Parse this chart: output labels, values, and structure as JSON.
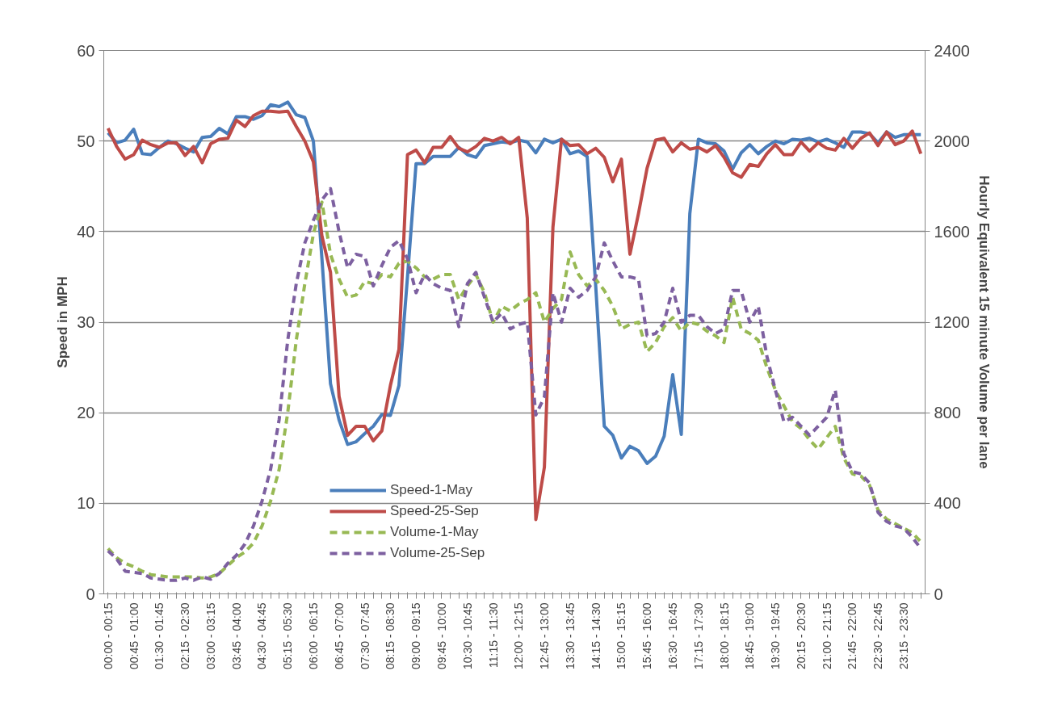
{
  "chart_data": {
    "type": "line",
    "categories": [
      "00:00 - 00:15",
      null,
      null,
      "00:45 - 01:00",
      null,
      null,
      "01:30 - 01:45",
      null,
      null,
      "02:15 - 02:30",
      null,
      null,
      "03:00 - 03:15",
      null,
      null,
      "03:45 - 04:00",
      null,
      null,
      "04:30 - 04:45",
      null,
      null,
      "05:15 - 05:30",
      null,
      null,
      "06:00 - 06:15",
      null,
      null,
      "06:45 - 07:00",
      null,
      null,
      "07:30 - 07:45",
      null,
      null,
      "08:15 - 08:30",
      null,
      null,
      "09:00 - 09:15",
      null,
      null,
      "09:45 - 10:00",
      null,
      null,
      "10:30 - 10:45",
      null,
      null,
      "11:15 - 11:30",
      null,
      null,
      "12:00 - 12:15",
      null,
      null,
      "12:45 - 13:00",
      null,
      null,
      "13:30 - 13:45",
      null,
      null,
      "14:15 - 14:30",
      null,
      null,
      "15:00 - 15:15",
      null,
      null,
      "15:45 - 16:00",
      null,
      null,
      "16:30 - 16:45",
      null,
      null,
      "17:15 - 17:30",
      null,
      null,
      "18:00 - 18:15",
      null,
      null,
      "18:45 - 19:00",
      null,
      null,
      "19:30 - 19:45",
      null,
      null,
      "20:15 - 20:30",
      null,
      null,
      "21:00 - 21:15",
      null,
      null,
      "21:45 - 22:00",
      null,
      null,
      "22:30 - 22:45",
      null,
      null,
      "23:15 - 23:30",
      null,
      null
    ],
    "ylabel": "Speed in MPH",
    "y2label": "Hourly Equivalent 15 minute Volume per lane",
    "ylim": [
      0,
      60
    ],
    "yticks": [
      0,
      10,
      20,
      30,
      40,
      50,
      60
    ],
    "y2lim": [
      0,
      2400
    ],
    "y2ticks": [
      0,
      400,
      800,
      1200,
      1600,
      2000,
      2400
    ],
    "grid": "y",
    "legend": "bottom",
    "series": [
      {
        "name": "Speed-1-May",
        "color": "#4a7ebb",
        "line_style": "solid",
        "values": [
          50.9,
          49.8,
          50.1,
          51.3,
          48.6,
          48.5,
          49.3,
          50.0,
          49.7,
          49.2,
          48.8,
          50.4,
          50.5,
          51.4,
          50.8,
          52.7,
          52.7,
          52.4,
          52.8,
          54.0,
          53.8,
          54.3,
          52.9,
          52.6,
          50.0,
          37,
          23.2,
          19.2,
          16.5,
          16.8,
          17.7,
          18.5,
          19.8,
          19.7,
          23,
          35,
          47.5,
          47.5,
          48.3,
          48.3,
          48.3,
          49.3,
          48.5,
          48.2,
          49.5,
          49.7,
          49.9,
          49.8,
          50.1,
          49.9,
          48.7,
          50.2,
          49.8,
          50.2,
          48.6,
          48.9,
          48.3,
          34,
          18.5,
          17.5,
          15,
          16.3,
          15.8,
          14.4,
          15.2,
          17.4,
          24.2,
          17.6,
          42,
          50.2,
          49.8,
          49.7,
          48.9,
          46.9,
          48.7,
          49.6,
          48.6,
          49.4,
          50.0,
          49.7,
          50.2,
          50.1,
          50.3,
          49.9,
          50.2,
          49.8,
          49.3,
          51.0,
          51.0,
          50.8,
          49.8,
          51.0,
          50.4,
          50.7,
          50.7,
          50.7
        ]
      },
      {
        "name": "Speed-25-Sep",
        "color": "#be4b48",
        "line_style": "solid",
        "values": [
          51.4,
          49.4,
          48.0,
          48.5,
          50.1,
          49.6,
          49.3,
          49.8,
          49.8,
          48.4,
          49.4,
          47.6,
          49.7,
          50.2,
          50.3,
          52.3,
          51.6,
          52.8,
          53.3,
          53.3,
          53.2,
          53.3,
          51.6,
          50.0,
          47.7,
          39.5,
          35.5,
          21.8,
          17.5,
          18.5,
          18.5,
          16.9,
          18,
          23,
          27,
          48.5,
          49,
          47.6,
          49.3,
          49.3,
          50.5,
          49.2,
          48.8,
          49.4,
          50.3,
          50.0,
          50.4,
          49.7,
          50.4,
          41.5,
          8.2,
          14,
          40.5,
          50.2,
          49.5,
          49.6,
          48.6,
          49.2,
          48.2,
          45.5,
          48,
          37.5,
          42,
          47,
          50.1,
          50.3,
          48.8,
          49.8,
          49.1,
          49.3,
          48.8,
          49.5,
          48.2,
          46.5,
          46.0,
          47.4,
          47.2,
          48.6,
          49.6,
          48.5,
          48.5,
          49.9,
          48.9,
          49.8,
          49.2,
          49.0,
          50.3,
          49.2,
          50.3,
          50.9,
          49.5,
          51.0,
          49.6,
          50.0,
          51.1,
          48.6
        ]
      },
      {
        "name": "Volume-1-May",
        "color": "#98b954",
        "line_style": "dashed",
        "axis": "y2",
        "values": [
          200,
          160,
          135,
          120,
          100,
          85,
          80,
          75,
          75,
          75,
          75,
          70,
          75,
          90,
          125,
          160,
          185,
          225,
          300,
          410,
          550,
          800,
          1120,
          1370,
          1590,
          1730,
          1500,
          1390,
          1310,
          1320,
          1380,
          1370,
          1410,
          1400,
          1460,
          1470,
          1440,
          1400,
          1390,
          1410,
          1410,
          1300,
          1360,
          1410,
          1330,
          1200,
          1270,
          1250,
          1280,
          1300,
          1330,
          1200,
          1260,
          1300,
          1510,
          1410,
          1360,
          1390,
          1340,
          1270,
          1170,
          1190,
          1200,
          1070,
          1110,
          1180,
          1220,
          1160,
          1200,
          1190,
          1160,
          1140,
          1110,
          1310,
          1170,
          1150,
          1120,
          1000,
          900,
          830,
          760,
          730,
          680,
          640,
          690,
          740,
          600,
          530,
          520,
          480,
          370,
          330,
          310,
          290,
          270,
          230
        ]
      },
      {
        "name": "Volume-25-Sep",
        "color": "#7d60a0",
        "line_style": "dashed",
        "axis": "y2",
        "values": [
          190,
          155,
          100,
          95,
          90,
          70,
          65,
          60,
          60,
          70,
          60,
          75,
          65,
          90,
          135,
          170,
          220,
          300,
          410,
          550,
          770,
          1120,
          1370,
          1550,
          1650,
          1740,
          1790,
          1600,
          1440,
          1500,
          1490,
          1360,
          1450,
          1530,
          1560,
          1480,
          1330,
          1410,
          1370,
          1350,
          1340,
          1180,
          1370,
          1420,
          1310,
          1200,
          1240,
          1170,
          1190,
          1200,
          790,
          870,
          1330,
          1200,
          1350,
          1310,
          1340,
          1400,
          1550,
          1470,
          1400,
          1400,
          1390,
          1140,
          1150,
          1200,
          1350,
          1200,
          1230,
          1230,
          1180,
          1150,
          1170,
          1340,
          1340,
          1200,
          1270,
          1050,
          900,
          760,
          780,
          740,
          700,
          740,
          780,
          900,
          620,
          540,
          530,
          490,
          360,
          320,
          300,
          290,
          250,
          200
        ]
      }
    ]
  }
}
